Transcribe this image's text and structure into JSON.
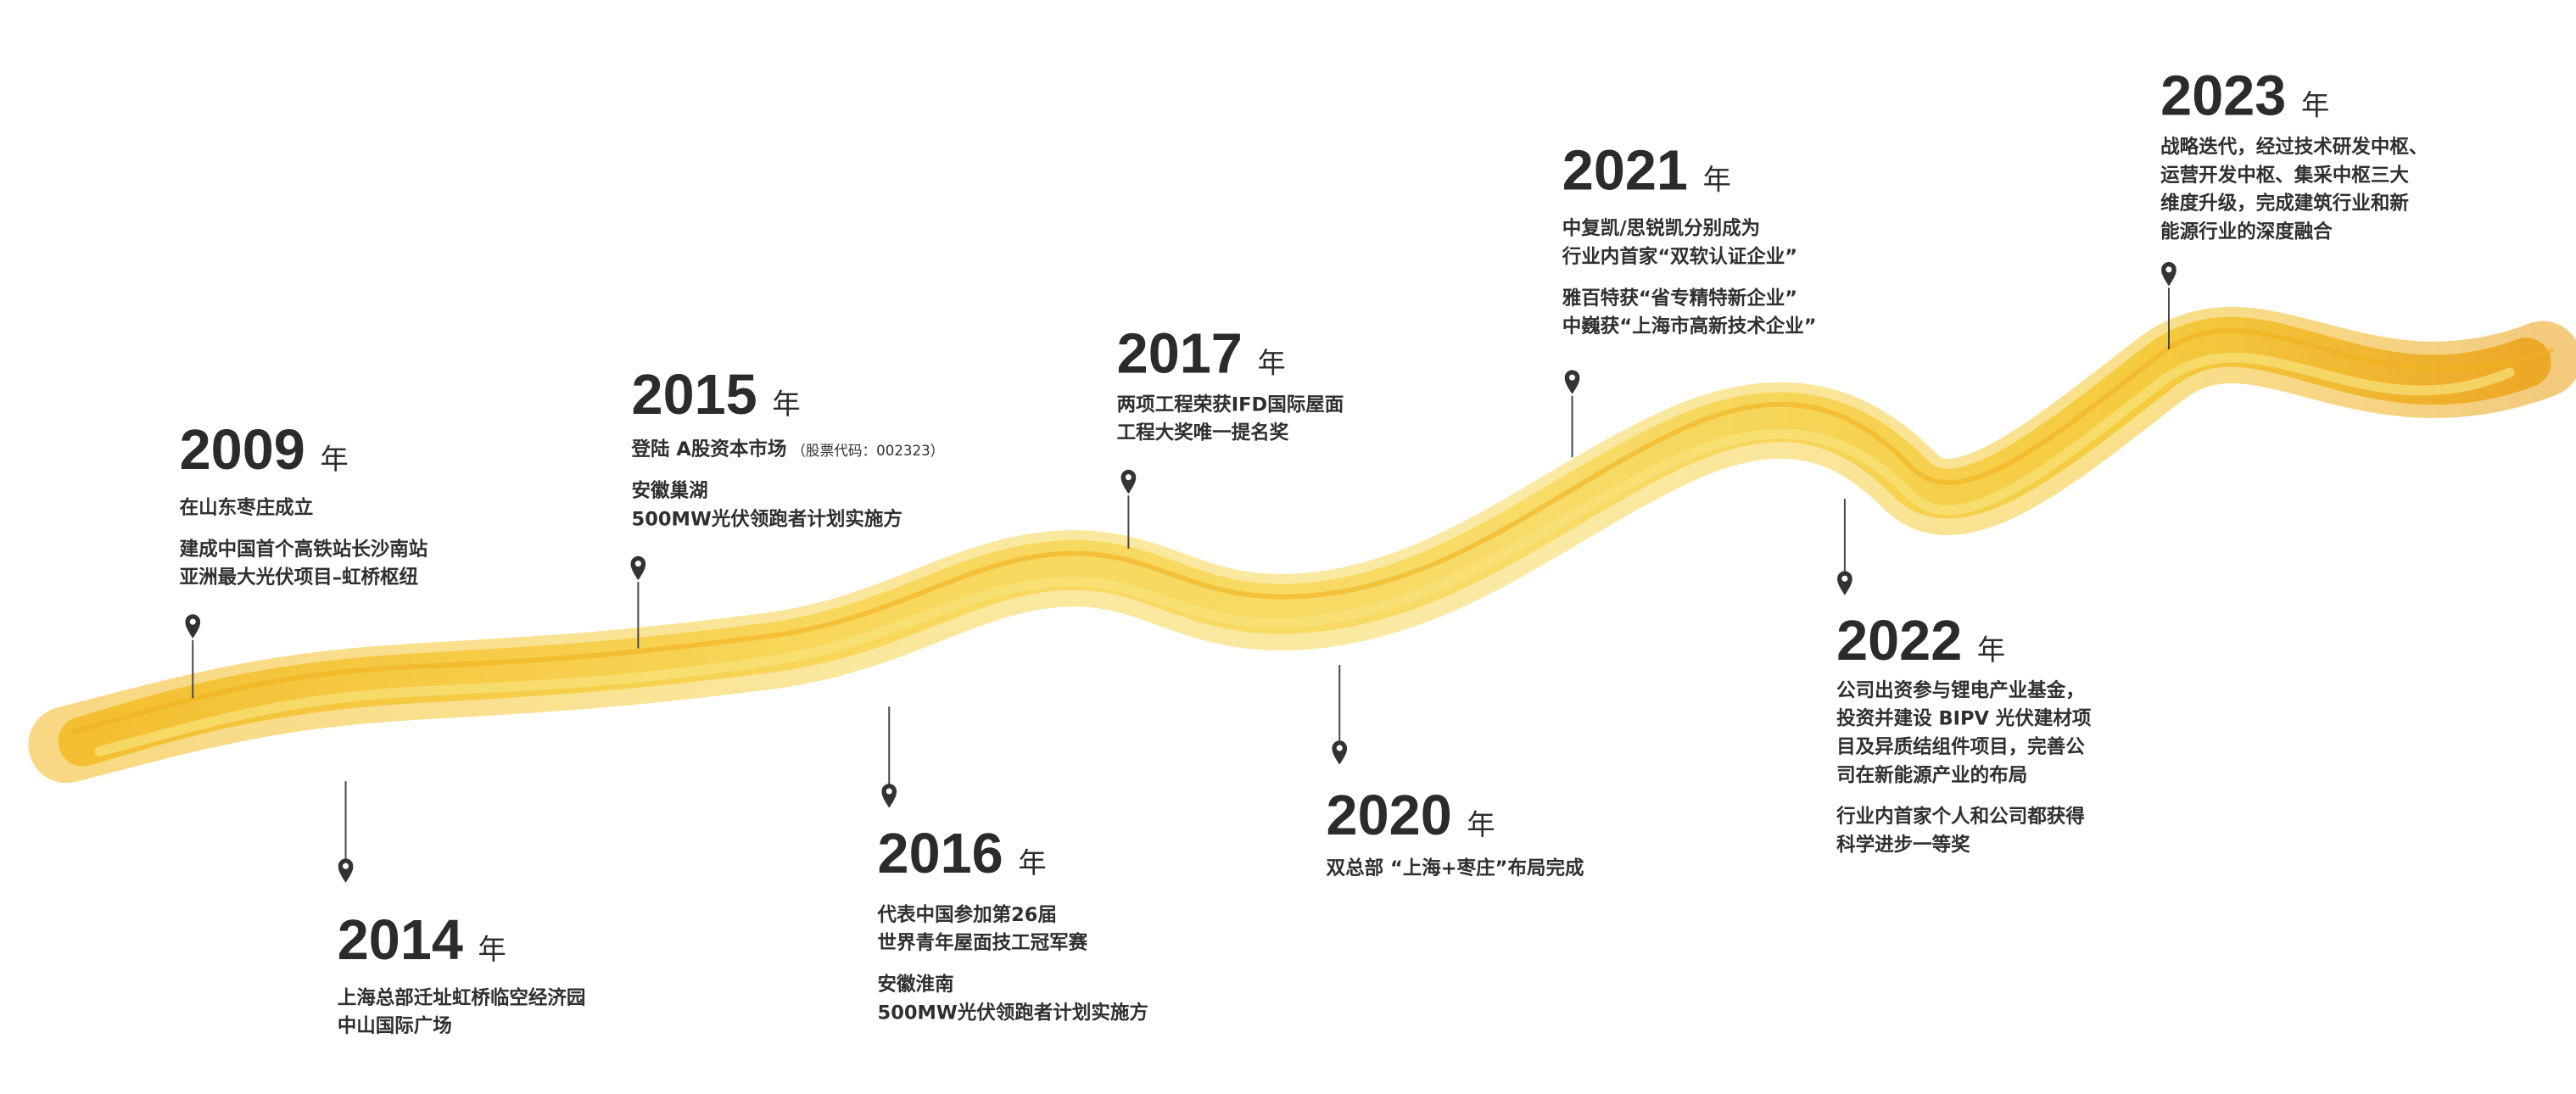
{
  "milestones": [
    {
      "year": "2009",
      "unit": "年",
      "paragraphs": [
        [
          "在山东枣庄成立"
        ],
        [
          "建成中国首个高铁站长沙南站",
          "亚洲最大光伏项目–虹桥枢纽"
        ]
      ]
    },
    {
      "year": "2014",
      "unit": "年",
      "paragraphs": [
        [
          "上海总部迁址虹桥临空经济园",
          "中山国际广场"
        ]
      ]
    },
    {
      "year": "2015",
      "unit": "年",
      "paragraphs": [
        [
          "登陆 A股资本市场"
        ],
        [
          "安徽巢湖",
          "500MW光伏领跑者计划实施方"
        ]
      ],
      "note": "（股票代码：002323）"
    },
    {
      "year": "2016",
      "unit": "年",
      "paragraphs": [
        [
          "代表中国参加第26届",
          "世界青年屋面技工冠军赛"
        ],
        [
          "安徽淮南",
          "500MW光伏领跑者计划实施方"
        ]
      ]
    },
    {
      "year": "2017",
      "unit": "年",
      "paragraphs": [
        [
          "两项工程荣获IFD国际屋面",
          "工程大奖唯一提名奖"
        ]
      ]
    },
    {
      "year": "2020",
      "unit": "年",
      "paragraphs": [
        [
          "双总部 “上海+枣庄”布局完成"
        ]
      ]
    },
    {
      "year": "2021",
      "unit": "年",
      "paragraphs": [
        [
          "中复凯/思锐凯分别成为",
          "行业内首家“双软认证企业”"
        ],
        [
          "雅百特获“省专精特新企业”",
          "中巍获“上海市高新技术企业”"
        ]
      ]
    },
    {
      "year": "2022",
      "unit": "年",
      "paragraphs": [
        [
          "公司出资参与锂电产业基金，",
          "投资并建设 BIPV 光伏建材项",
          "目及异质结组件项目，完善公",
          "司在新能源产业的布局"
        ],
        [
          "行业内首家个人和公司都获得",
          "科学进步一等奖"
        ]
      ]
    },
    {
      "year": "2023",
      "unit": "年",
      "paragraphs": [
        [
          "战略迭代，经过技术研发中枢、",
          "运营开发中枢、集采中枢三大",
          "维度升级，完成建筑行业和新",
          "能源行业的深度融合"
        ]
      ]
    }
  ]
}
